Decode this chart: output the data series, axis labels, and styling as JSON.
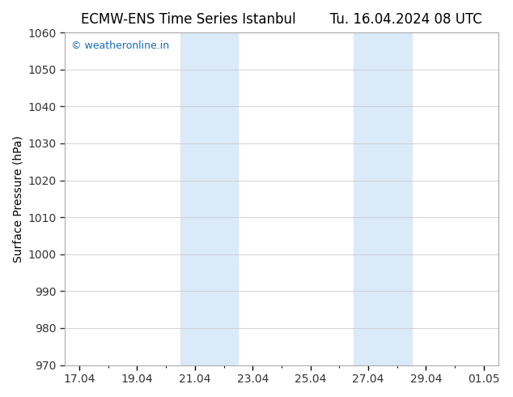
{
  "title": "ECMW-ENS Time Series Istanbul        Tu. 16.04.2024 08 UTC",
  "ylabel": "Surface Pressure (hPa)",
  "ylim": [
    970,
    1060
  ],
  "yticks": [
    970,
    980,
    990,
    1000,
    1010,
    1020,
    1030,
    1040,
    1050,
    1060
  ],
  "xtick_labels": [
    "17.04",
    "19.04",
    "21.04",
    "23.04",
    "25.04",
    "27.04",
    "29.04",
    "01.05"
  ],
  "xtick_positions": [
    0,
    2,
    4,
    6,
    8,
    10,
    12,
    14
  ],
  "xmin": -0.5,
  "xmax": 14.5,
  "shaded_regions": [
    {
      "x_start": 3.5,
      "x_end": 5.5
    },
    {
      "x_start": 9.5,
      "x_end": 11.5
    }
  ],
  "shade_color": "#daeaf8",
  "bg_color": "#ffffff",
  "plot_bg_color": "#ffffff",
  "watermark_text": "© weatheronline.in",
  "watermark_color": "#1a6bb5",
  "title_fontsize": 12,
  "tick_fontsize": 10,
  "ylabel_fontsize": 10,
  "grid_color": "#cccccc",
  "spine_color": "#aaaaaa",
  "tick_color": "#333333"
}
